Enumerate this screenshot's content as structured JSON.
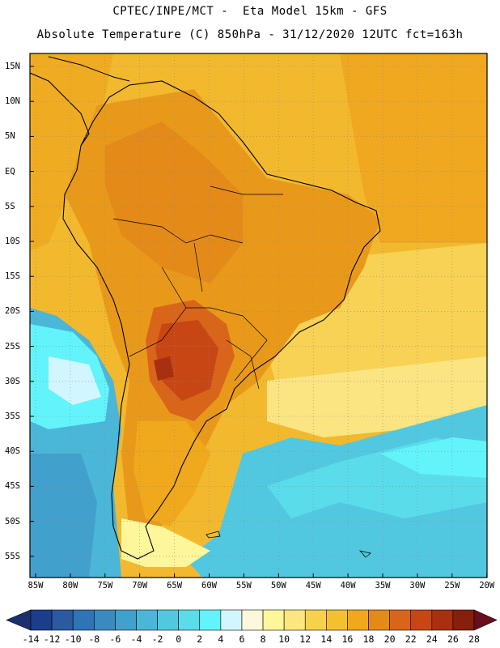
{
  "header": {
    "line1": "CPTEC/INPE/MCT -  Eta Model 15km - GFS",
    "line2": "Absolute Temperature (C) 850hPa - 31/12/2020 12UTC fct=163h"
  },
  "map": {
    "lat_labels": [
      "15N",
      "10N",
      "5N",
      "EQ",
      "5S",
      "10S",
      "15S",
      "20S",
      "25S",
      "30S",
      "35S",
      "40S",
      "45S",
      "50S",
      "55S"
    ],
    "lon_labels": [
      "85W",
      "80W",
      "75W",
      "70W",
      "65W",
      "60W",
      "55W",
      "50W",
      "45W",
      "40W",
      "35W",
      "30W",
      "25W",
      "20W"
    ]
  },
  "colorbar": {
    "labels": [
      "-14",
      "-12",
      "-10",
      "-8",
      "-6",
      "-4",
      "-2",
      "0",
      "2",
      "4",
      "6",
      "8",
      "10",
      "12",
      "14",
      "16",
      "18",
      "20",
      "22",
      "24",
      "26",
      "28"
    ],
    "colors": [
      "#1c3d8c",
      "#2a5aa0",
      "#2f74b4",
      "#3a8ac0",
      "#42a0cc",
      "#4ab6d8",
      "#52c8e0",
      "#5adcea",
      "#62f4fa",
      "#d2f6ff",
      "#fdf7dc",
      "#fdf69a",
      "#fbe680",
      "#f6d24c",
      "#f3c030",
      "#f0a81c",
      "#e48a18",
      "#d9651a",
      "#c84614",
      "#a83010",
      "#86200c"
    ],
    "end_colors": {
      "left": "#1c3070",
      "right": "#6a0e1e"
    }
  }
}
